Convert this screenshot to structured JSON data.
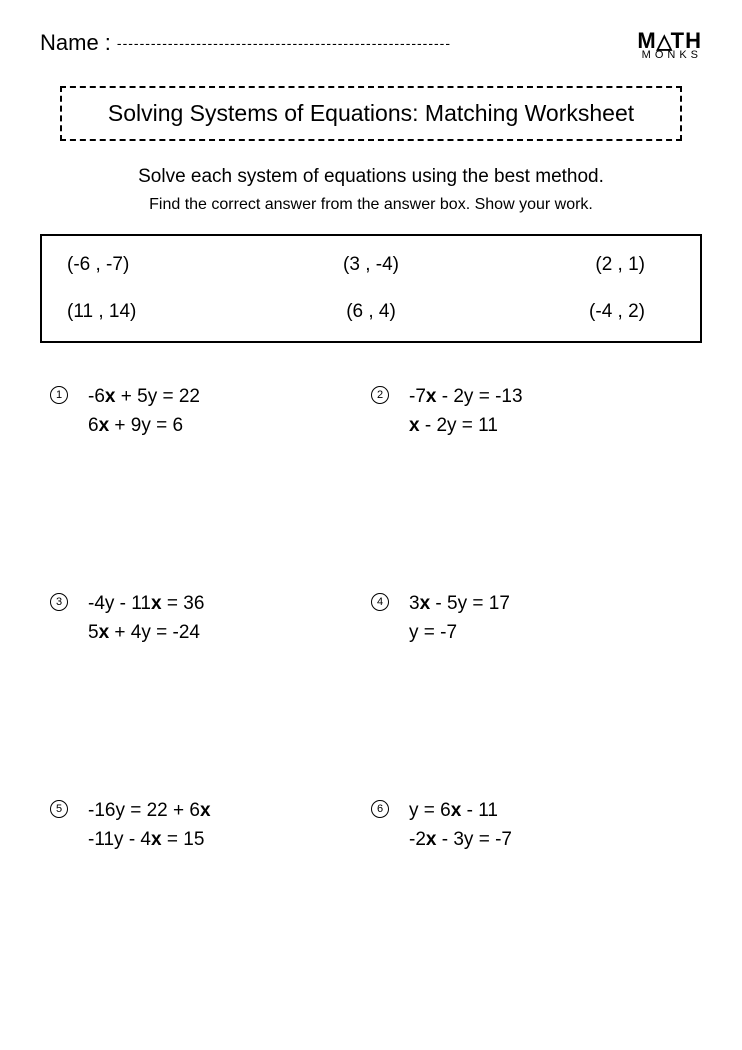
{
  "name_label": "Name :",
  "logo": {
    "top_left": "M",
    "top_right": "TH",
    "bottom": "MONKS"
  },
  "title": "Solving Systems of Equations: Matching Worksheet",
  "instruction": "Solve each system of equations using the best method.",
  "subinstruction": "Find the correct answer from the answer box. Show your work.",
  "answers": {
    "row1": [
      "(-6 , -7)",
      "(3 , -4)",
      "(2 , 1)"
    ],
    "row2": [
      "(11 , 14)",
      "(6 , 4)",
      "(-4 , 2)"
    ]
  },
  "problems": [
    {
      "num": "1",
      "eq1_a": "-6",
      "eq1_b": " + 5y = 22",
      "eq2_a": "6",
      "eq2_b": " + 9y = 6"
    },
    {
      "num": "2",
      "eq1_a": "-7",
      "eq1_b": " - 2y = -13",
      "eq2_a": "",
      "eq2_b": " - 2y = 11",
      "eq2_pre": "x"
    },
    {
      "num": "3",
      "eq1_a": "-4y - 11",
      "eq1_b": " = 36",
      "eq2_a": "5",
      "eq2_b": " + 4y = -24"
    },
    {
      "num": "4",
      "eq1_a": "3",
      "eq1_b": " - 5y = 17",
      "eq2_plain": "y = -7"
    },
    {
      "num": "5",
      "eq1_a": "-16y = 22 + 6",
      "eq1_b": "",
      "eq2_a": "-11y - 4",
      "eq2_b": " = 15"
    },
    {
      "num": "6",
      "eq1_plain_a": "y = 6",
      "eq1_plain_b": " - 11",
      "eq2_a": "-2",
      "eq2_b": " - 3y = -7"
    }
  ]
}
